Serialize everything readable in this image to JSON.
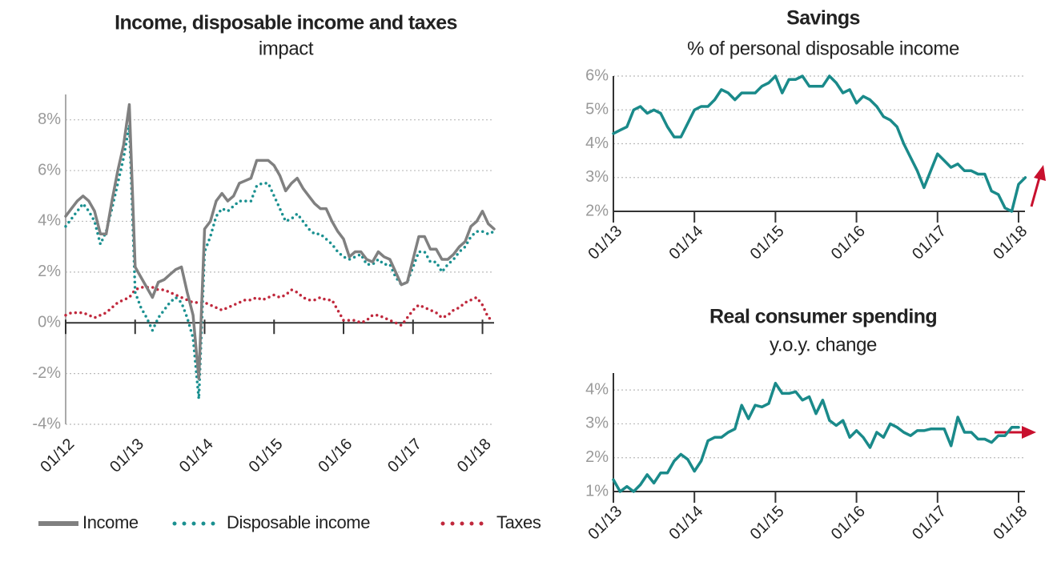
{
  "chart_data": [
    {
      "type": "line",
      "title": "Income, disposable income and taxes",
      "subtitle": "impact",
      "categories": [
        "01/12",
        null,
        null,
        null,
        null,
        null,
        null,
        null,
        null,
        null,
        null,
        null,
        "01/13",
        null,
        null,
        null,
        null,
        null,
        null,
        null,
        null,
        null,
        null,
        null,
        "01/14",
        null,
        null,
        null,
        null,
        null,
        null,
        null,
        null,
        null,
        null,
        null,
        "01/15",
        null,
        null,
        null,
        null,
        null,
        null,
        null,
        null,
        null,
        null,
        null,
        "01/16",
        null,
        null,
        null,
        null,
        null,
        null,
        null,
        null,
        null,
        null,
        null,
        "01/17",
        null,
        null,
        null,
        null,
        null,
        null,
        null,
        null,
        null,
        null,
        null,
        "01/18",
        null,
        null
      ],
      "series": [
        {
          "name": "Income",
          "color": "#808080",
          "style": "solid",
          "values": [
            4.2,
            4.5,
            4.8,
            5.0,
            4.8,
            4.4,
            3.5,
            3.5,
            4.8,
            6.0,
            7.0,
            8.6,
            2.2,
            1.8,
            1.4,
            1.0,
            1.6,
            1.7,
            1.9,
            2.1,
            2.2,
            1.2,
            0.3,
            -2.2,
            3.7,
            4.0,
            4.8,
            5.1,
            4.8,
            5.0,
            5.5,
            5.6,
            5.7,
            6.4,
            6.4,
            6.4,
            6.2,
            5.8,
            5.2,
            5.5,
            5.7,
            5.3,
            5.0,
            4.7,
            4.5,
            4.5,
            4.0,
            3.6,
            3.3,
            2.6,
            2.8,
            2.8,
            2.5,
            2.4,
            2.8,
            2.6,
            2.5,
            2.0,
            1.5,
            1.6,
            2.5,
            3.4,
            3.4,
            2.9,
            2.9,
            2.5,
            2.5,
            2.7,
            3.0,
            3.2,
            3.8,
            4.0,
            4.4,
            3.9,
            3.7
          ]
        },
        {
          "name": "Disposable income",
          "color": "#1a9090",
          "style": "dotted",
          "values": [
            3.8,
            4.1,
            4.4,
            4.7,
            4.4,
            4.0,
            3.1,
            3.6,
            4.5,
            5.5,
            6.5,
            7.8,
            1.2,
            0.6,
            0.2,
            -0.3,
            0.2,
            0.5,
            0.8,
            1.0,
            0.8,
            0.2,
            -0.6,
            -3.0,
            2.8,
            3.4,
            4.2,
            4.5,
            4.4,
            4.6,
            4.8,
            4.8,
            4.8,
            5.4,
            5.5,
            5.5,
            5.0,
            4.5,
            4.0,
            4.1,
            4.3,
            4.0,
            3.7,
            3.5,
            3.5,
            3.3,
            3.1,
            2.8,
            2.6,
            2.5,
            2.6,
            2.7,
            2.3,
            2.3,
            2.5,
            2.3,
            2.3,
            1.8,
            1.5,
            1.6,
            2.2,
            2.8,
            2.8,
            2.4,
            2.4,
            2.0,
            2.3,
            2.5,
            2.8,
            3.0,
            3.4,
            3.6,
            3.6,
            3.5,
            3.6
          ]
        },
        {
          "name": "Taxes",
          "color": "#c0283c",
          "style": "dotted",
          "values": [
            0.3,
            0.4,
            0.4,
            0.4,
            0.3,
            0.2,
            0.3,
            0.4,
            0.6,
            0.8,
            0.9,
            1.0,
            1.3,
            1.4,
            1.4,
            1.4,
            1.3,
            1.3,
            1.2,
            1.1,
            1.0,
            0.9,
            0.8,
            0.8,
            0.8,
            0.7,
            0.6,
            0.5,
            0.6,
            0.7,
            0.8,
            0.9,
            0.9,
            1.0,
            0.9,
            1.0,
            1.1,
            1.0,
            1.1,
            1.3,
            1.2,
            1.0,
            0.9,
            0.9,
            1.0,
            0.9,
            0.9,
            0.5,
            0.1,
            0.1,
            0.1,
            0.0,
            0.1,
            0.3,
            0.3,
            0.2,
            0.1,
            0.0,
            -0.1,
            0.2,
            0.5,
            0.7,
            0.6,
            0.5,
            0.4,
            0.2,
            0.3,
            0.5,
            0.6,
            0.8,
            0.9,
            1.0,
            0.7,
            0.2,
            0.1
          ]
        }
      ],
      "ylim": [
        -4,
        9
      ],
      "yticks": [
        {
          "value": -4,
          "label": "-4%"
        },
        {
          "value": -2,
          "label": "-2%"
        },
        {
          "value": 0,
          "label": "0%"
        },
        {
          "value": 2,
          "label": "2%"
        },
        {
          "value": 4,
          "label": "4%"
        },
        {
          "value": 6,
          "label": "6%"
        },
        {
          "value": 8,
          "label": "8%"
        }
      ],
      "grid": true,
      "legend": "bottom"
    },
    {
      "type": "line",
      "title": "Savings",
      "subtitle": "% of personal disposable income",
      "categories": [
        "01/13",
        null,
        null,
        null,
        null,
        null,
        null,
        null,
        null,
        null,
        null,
        null,
        "01/14",
        null,
        null,
        null,
        null,
        null,
        null,
        null,
        null,
        null,
        null,
        null,
        "01/15",
        null,
        null,
        null,
        null,
        null,
        null,
        null,
        null,
        null,
        null,
        null,
        "01/16",
        null,
        null,
        null,
        null,
        null,
        null,
        null,
        null,
        null,
        null,
        null,
        "01/17",
        null,
        null,
        null,
        null,
        null,
        null,
        null,
        null,
        null,
        null,
        null,
        "01/18",
        null
      ],
      "color": "#1a8a8a",
      "values": [
        4.3,
        4.4,
        4.5,
        5.0,
        5.1,
        4.9,
        5.0,
        4.9,
        4.5,
        4.2,
        4.2,
        4.6,
        5.0,
        5.1,
        5.1,
        5.3,
        5.6,
        5.5,
        5.3,
        5.5,
        5.5,
        5.5,
        5.7,
        5.8,
        6.0,
        5.5,
        5.9,
        5.9,
        6.0,
        5.7,
        5.7,
        5.7,
        6.0,
        5.8,
        5.5,
        5.6,
        5.2,
        5.4,
        5.3,
        5.1,
        4.8,
        4.7,
        4.5,
        4.0,
        3.6,
        3.2,
        2.7,
        3.2,
        3.7,
        3.5,
        3.3,
        3.4,
        3.2,
        3.2,
        3.1,
        3.1,
        2.6,
        2.5,
        2.1,
        2.0,
        2.8,
        3.0
      ],
      "ylim": [
        2,
        6
      ],
      "yticks": [
        {
          "value": 2,
          "label": "2%"
        },
        {
          "value": 3,
          "label": "3%"
        },
        {
          "value": 4,
          "label": "4%"
        },
        {
          "value": 5,
          "label": "5%"
        },
        {
          "value": 6,
          "label": "6%"
        }
      ],
      "grid": true
    },
    {
      "type": "line",
      "title": "Real consumer spending",
      "subtitle": "y.o.y. change",
      "categories": [
        "01/13",
        null,
        null,
        null,
        null,
        null,
        null,
        null,
        null,
        null,
        null,
        null,
        "01/14",
        null,
        null,
        null,
        null,
        null,
        null,
        null,
        null,
        null,
        null,
        null,
        "01/15",
        null,
        null,
        null,
        null,
        null,
        null,
        null,
        null,
        null,
        null,
        null,
        "01/16",
        null,
        null,
        null,
        null,
        null,
        null,
        null,
        null,
        null,
        null,
        null,
        "01/17",
        null,
        null,
        null,
        null,
        null,
        null,
        null,
        null,
        null,
        null,
        null,
        "01/18"
      ],
      "color": "#1a8a8a",
      "values": [
        1.35,
        1.0,
        1.15,
        1.0,
        1.2,
        1.5,
        1.25,
        1.55,
        1.55,
        1.9,
        2.1,
        1.95,
        1.6,
        1.9,
        2.5,
        2.6,
        2.6,
        2.75,
        2.85,
        3.55,
        3.15,
        3.55,
        3.5,
        3.6,
        4.2,
        3.9,
        3.9,
        3.95,
        3.7,
        3.8,
        3.3,
        3.7,
        3.1,
        2.95,
        3.1,
        2.6,
        2.8,
        2.6,
        2.3,
        2.75,
        2.6,
        3.0,
        2.9,
        2.75,
        2.65,
        2.8,
        2.8,
        2.85,
        2.85,
        2.85,
        2.35,
        3.2,
        2.75,
        2.75,
        2.55,
        2.55,
        2.45,
        2.65,
        2.65,
        2.9,
        2.9
      ],
      "ylim": [
        1,
        4.5
      ],
      "yticks": [
        {
          "value": 1,
          "label": "1%"
        },
        {
          "value": 2,
          "label": "2%"
        },
        {
          "value": 3,
          "label": "3%"
        },
        {
          "value": 4,
          "label": "4%"
        }
      ],
      "grid": true
    }
  ]
}
